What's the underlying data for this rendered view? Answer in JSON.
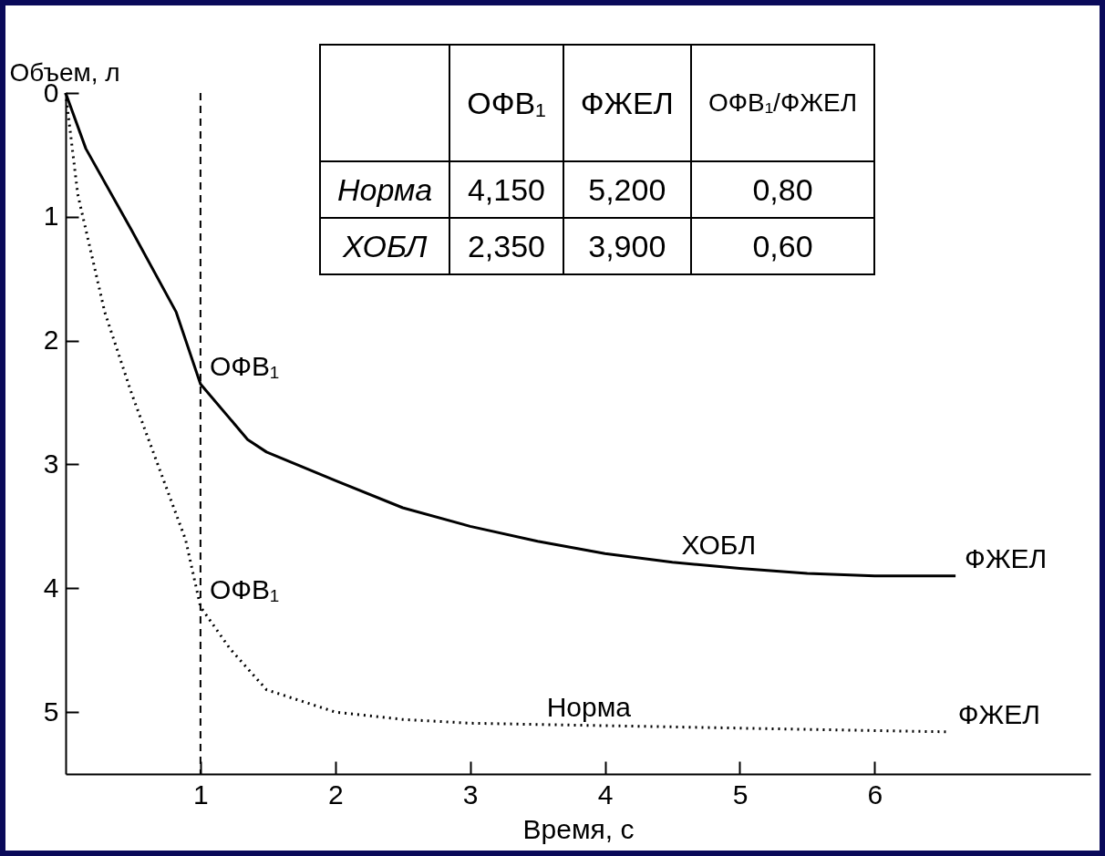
{
  "chart_data": {
    "type": "line",
    "xlabel": "Время, с",
    "ylabel": "Объем, л",
    "xlim": [
      0,
      7.6
    ],
    "ylim": [
      5.5,
      0
    ],
    "xticks": [
      1,
      2,
      3,
      4,
      5,
      6
    ],
    "yticks": [
      0,
      1,
      2,
      3,
      4,
      5
    ],
    "grid": false,
    "series": [
      {
        "color": "#000000",
        "line_style": "solid",
        "x": [
          0,
          0.15,
          0.49,
          0.82,
          1.0,
          1.35,
          1.49,
          2.0,
          2.5,
          3.0,
          3.5,
          4.0,
          4.5,
          5.0,
          5.5,
          6.0,
          6.6
        ],
        "values": [
          0,
          0.45,
          1.11,
          1.77,
          2.35,
          2.8,
          2.9,
          3.13,
          3.35,
          3.5,
          3.62,
          3.72,
          3.79,
          3.84,
          3.88,
          3.9,
          3.9
        ]
      },
      {
        "color": "#000000",
        "line_style": "dotted",
        "x": [
          0,
          0.09,
          0.29,
          0.49,
          0.69,
          0.89,
          1.0,
          1.22,
          1.49,
          2.0,
          2.5,
          3.0,
          3.5,
          4.0,
          5.0,
          6.0,
          6.55
        ],
        "values": [
          0,
          0.82,
          1.77,
          2.43,
          3.02,
          3.61,
          4.15,
          4.49,
          4.82,
          5.0,
          5.06,
          5.09,
          5.1,
          5.11,
          5.13,
          5.15,
          5.16
        ]
      }
    ],
    "ref_lines": [
      {
        "axis": "x",
        "value": 1,
        "line_style": "dashed",
        "color": "#000000"
      }
    ],
    "annotations": [
      "ОФВ₁",
      "ФЖЕЛ",
      "ОФВ₁/ФЖЕЛ",
      "Норма",
      "4,150",
      "5,200",
      "0,80",
      "ХОБЛ",
      "2,350",
      "3,900",
      "0,60",
      {
        "text": "ОФВ₁",
        "x": 1.0,
        "y": 2.35
      },
      {
        "text": "ОФВ₁",
        "x": 1.0,
        "y": 4.15
      },
      {
        "text": "ХОБЛ",
        "x": 4.5,
        "y": 3.79
      },
      {
        "text": "Норма",
        "x": 3.5,
        "y": 5.1
      },
      {
        "text": "ФЖЕЛ",
        "x": 6.6,
        "y": 3.9
      },
      {
        "text": "ФЖЕЛ",
        "x": 6.55,
        "y": 5.16
      }
    ]
  }
}
